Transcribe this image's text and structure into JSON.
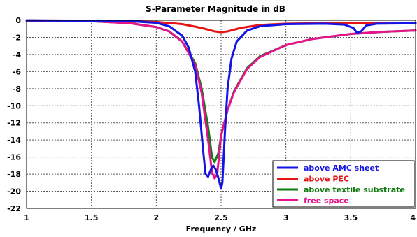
{
  "chart_data": {
    "type": "line",
    "title": "S-Parameter Magnitude in dB",
    "xlabel": "Frequency / GHz",
    "ylabel": "",
    "xlim": [
      1,
      4
    ],
    "ylim": [
      -22,
      0
    ],
    "x_ticks": [
      1,
      1.5,
      2,
      2.5,
      3,
      3.5,
      4
    ],
    "x_tick_labels": [
      "1",
      "1.5",
      "2",
      "2.5",
      "3",
      "3.5",
      "4"
    ],
    "y_ticks": [
      0,
      -2,
      -4,
      -6,
      -8,
      -10,
      -12,
      -14,
      -16,
      -18,
      -20,
      -22
    ],
    "y_tick_labels": [
      "0",
      "-2",
      "-4",
      "-6",
      "-8",
      "-10",
      "-12",
      "-14",
      "-16",
      "-18",
      "-20",
      "-22"
    ],
    "grid": true,
    "legend_position": "bottom-right",
    "series": [
      {
        "name": "above AMC sheet",
        "color": "#1414e6",
        "points": [
          [
            1,
            -0.02
          ],
          [
            1.5,
            -0.05
          ],
          [
            1.8,
            -0.1
          ],
          [
            2.0,
            -0.3
          ],
          [
            2.1,
            -0.7
          ],
          [
            2.2,
            -1.8
          ],
          [
            2.25,
            -3.2
          ],
          [
            2.3,
            -6.0
          ],
          [
            2.33,
            -10.0
          ],
          [
            2.36,
            -15.0
          ],
          [
            2.38,
            -18.0
          ],
          [
            2.4,
            -18.3
          ],
          [
            2.42,
            -17.5
          ],
          [
            2.44,
            -17.0
          ],
          [
            2.46,
            -17.5
          ],
          [
            2.48,
            -18.5
          ],
          [
            2.5,
            -19.7
          ],
          [
            2.51,
            -19.0
          ],
          [
            2.53,
            -13.0
          ],
          [
            2.55,
            -8.0
          ],
          [
            2.58,
            -4.5
          ],
          [
            2.62,
            -2.5
          ],
          [
            2.7,
            -1.2
          ],
          [
            2.8,
            -0.7
          ],
          [
            3.0,
            -0.45
          ],
          [
            3.3,
            -0.4
          ],
          [
            3.45,
            -0.5
          ],
          [
            3.52,
            -0.9
          ],
          [
            3.55,
            -1.5
          ],
          [
            3.58,
            -1.3
          ],
          [
            3.62,
            -0.6
          ],
          [
            3.7,
            -0.4
          ],
          [
            4.0,
            -0.35
          ]
        ]
      },
      {
        "name": "above PEC",
        "color": "#e61414",
        "points": [
          [
            1,
            -0.02
          ],
          [
            1.5,
            -0.05
          ],
          [
            2.0,
            -0.2
          ],
          [
            2.2,
            -0.45
          ],
          [
            2.35,
            -0.9
          ],
          [
            2.45,
            -1.3
          ],
          [
            2.5,
            -1.4
          ],
          [
            2.55,
            -1.3
          ],
          [
            2.65,
            -0.9
          ],
          [
            2.8,
            -0.55
          ],
          [
            3.0,
            -0.4
          ],
          [
            3.5,
            -0.3
          ],
          [
            4.0,
            -0.3
          ]
        ]
      },
      {
        "name": "above textile substrate",
        "color": "#117a11",
        "points": [
          [
            1,
            -0.02
          ],
          [
            1.5,
            -0.1
          ],
          [
            1.8,
            -0.35
          ],
          [
            2.0,
            -0.8
          ],
          [
            2.1,
            -1.3
          ],
          [
            2.2,
            -2.5
          ],
          [
            2.3,
            -5.0
          ],
          [
            2.35,
            -8.0
          ],
          [
            2.4,
            -12.5
          ],
          [
            2.43,
            -16.0
          ],
          [
            2.45,
            -16.6
          ],
          [
            2.48,
            -15.5
          ],
          [
            2.5,
            -13.5
          ],
          [
            2.55,
            -10.5
          ],
          [
            2.6,
            -8.3
          ],
          [
            2.7,
            -5.6
          ],
          [
            2.8,
            -4.2
          ],
          [
            3.0,
            -2.9
          ],
          [
            3.2,
            -2.2
          ],
          [
            3.5,
            -1.6
          ],
          [
            3.75,
            -1.35
          ],
          [
            4.0,
            -1.2
          ]
        ]
      },
      {
        "name": "free space",
        "color": "#e6148c",
        "points": [
          [
            1,
            -0.02
          ],
          [
            1.5,
            -0.1
          ],
          [
            1.8,
            -0.35
          ],
          [
            2.0,
            -0.8
          ],
          [
            2.1,
            -1.3
          ],
          [
            2.2,
            -2.5
          ],
          [
            2.3,
            -5.2
          ],
          [
            2.35,
            -8.5
          ],
          [
            2.4,
            -14.0
          ],
          [
            2.43,
            -17.8
          ],
          [
            2.45,
            -18.5
          ],
          [
            2.47,
            -18.0
          ],
          [
            2.5,
            -13.5
          ],
          [
            2.55,
            -10.5
          ],
          [
            2.6,
            -8.4
          ],
          [
            2.7,
            -5.7
          ],
          [
            2.8,
            -4.3
          ],
          [
            3.0,
            -2.9
          ],
          [
            3.2,
            -2.2
          ],
          [
            3.5,
            -1.6
          ],
          [
            3.75,
            -1.35
          ],
          [
            4.0,
            -1.2
          ]
        ]
      }
    ]
  }
}
